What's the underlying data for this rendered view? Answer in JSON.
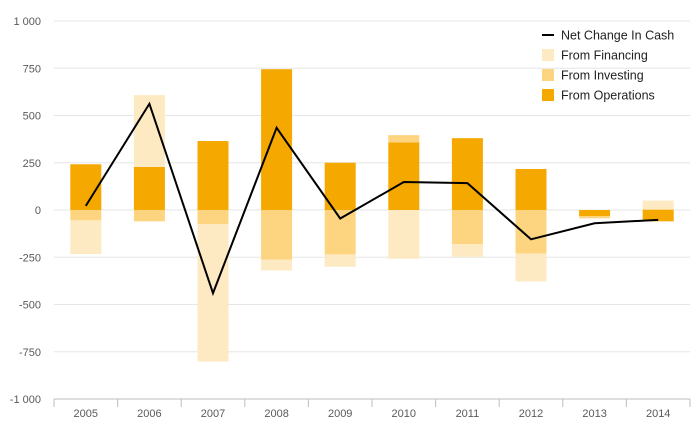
{
  "chart_data": {
    "type": "bar",
    "stacked": true,
    "categories": [
      "2005",
      "2006",
      "2007",
      "2008",
      "2009",
      "2010",
      "2011",
      "2012",
      "2013",
      "2014"
    ],
    "series": [
      {
        "name": "From Operations",
        "kind": "bar",
        "color": "#f5a800",
        "values": [
          242,
          228,
          365,
          745,
          250,
          358,
          380,
          217,
          -32,
          -60
        ]
      },
      {
        "name": "From Investing",
        "kind": "bar",
        "color": "#fdd47f",
        "values": [
          -55,
          -60,
          -75,
          -262,
          -235,
          38,
          -180,
          -230,
          -12,
          5
        ]
      },
      {
        "name": "From Financing",
        "kind": "bar",
        "color": "#feeac2",
        "values": [
          -178,
          380,
          -727,
          -58,
          -65,
          -258,
          -68,
          -148,
          0,
          45
        ]
      },
      {
        "name": "Net Change In Cash",
        "kind": "line",
        "color": "#000000",
        "values": [
          22,
          562,
          -440,
          435,
          -45,
          148,
          142,
          -155,
          -70,
          -52
        ]
      }
    ],
    "ylim": [
      -1000,
      1000
    ],
    "yticks": [
      -1000,
      -750,
      -500,
      -250,
      0,
      250,
      500,
      750,
      1000
    ],
    "ytick_labels": [
      "-1 000",
      "-750",
      "-500",
      "-250",
      "0",
      "250",
      "500",
      "750",
      "1 000"
    ],
    "grid": true,
    "legend_position": "top-right",
    "legend": [
      "Net Change In Cash",
      "From Financing",
      "From Investing",
      "From Operations"
    ]
  }
}
